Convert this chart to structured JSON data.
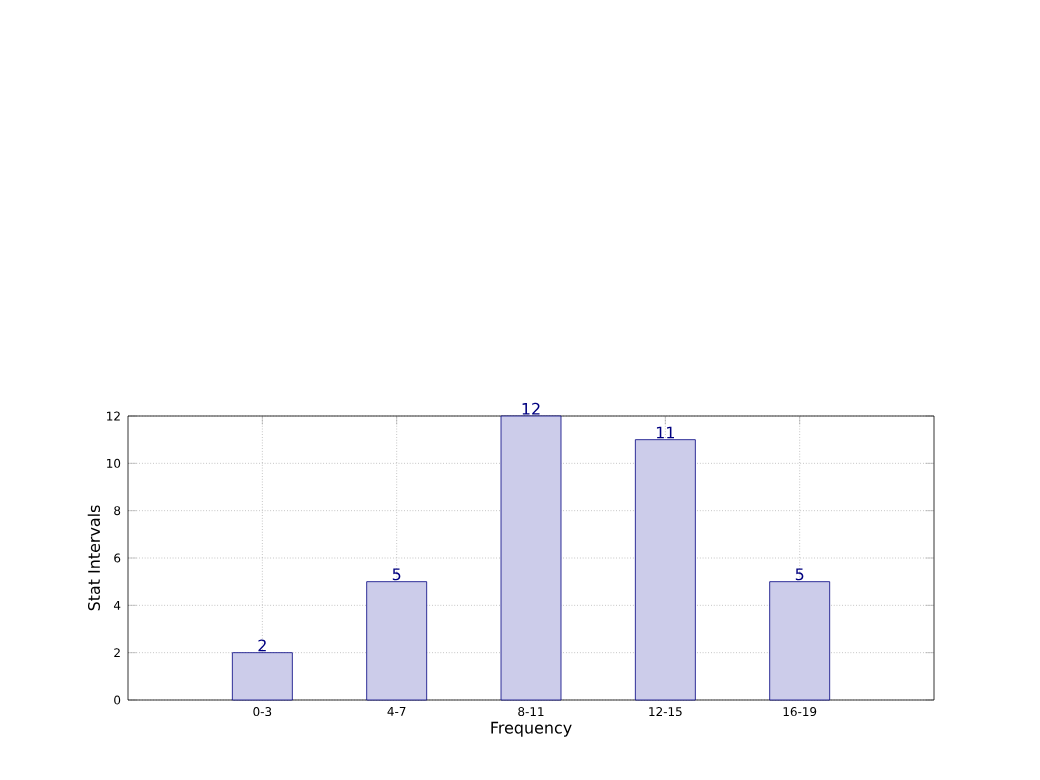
{
  "chart_data": {
    "type": "bar",
    "xlabel": "Frequency",
    "ylabel": "Stat Intervals",
    "categories": [
      "0-3",
      "4-7",
      "8-11",
      "12-15",
      "16-19"
    ],
    "values": [
      2,
      5,
      12,
      11,
      5
    ],
    "color": "#ccccea",
    "ylim": [
      0,
      12
    ],
    "yticks": [
      0,
      2,
      4,
      6,
      8,
      10,
      12
    ],
    "grid": true,
    "data_labels": true
  }
}
